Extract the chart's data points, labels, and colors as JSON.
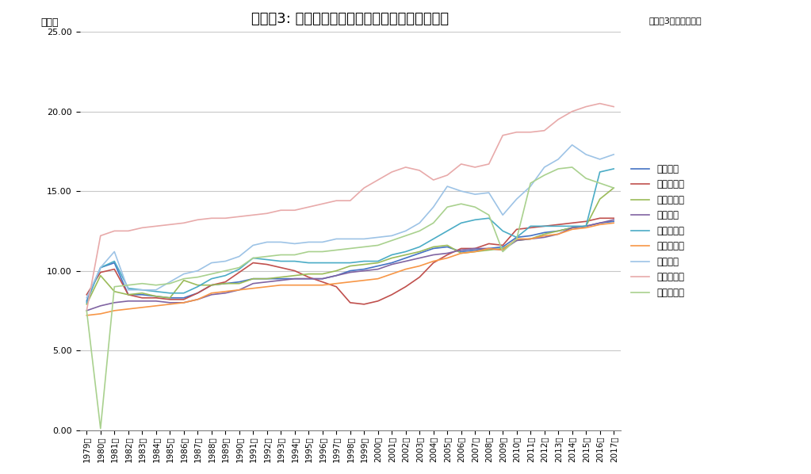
{
  "title": "グラフ3: 平均使用年数の推移（軽自動車を除く）",
  "subtitle": "（各年3月末日時点）",
  "ylabel": "（年）",
  "years": [
    1979,
    1980,
    1981,
    1982,
    1983,
    1984,
    1985,
    1986,
    1987,
    1988,
    1989,
    1990,
    1991,
    1992,
    1993,
    1994,
    1995,
    1996,
    1997,
    1998,
    1999,
    2000,
    2001,
    2002,
    2003,
    2004,
    2005,
    2006,
    2007,
    2008,
    2009,
    2010,
    2011,
    2012,
    2013,
    2014,
    2015,
    2016,
    2017
  ],
  "series": [
    {
      "name": "乗用車計",
      "color": "#4472C4",
      "data": [
        8.1,
        10.2,
        10.5,
        8.5,
        8.5,
        8.4,
        8.3,
        8.3,
        8.6,
        9.1,
        9.2,
        9.3,
        9.5,
        9.5,
        9.5,
        9.5,
        9.5,
        9.5,
        9.7,
        10.0,
        10.1,
        10.3,
        10.5,
        10.8,
        11.1,
        11.4,
        11.5,
        11.2,
        11.3,
        11.4,
        11.5,
        12.1,
        12.2,
        12.4,
        12.5,
        12.7,
        12.8,
        13.0,
        13.1
      ]
    },
    {
      "name": "普通乗用車",
      "color": "#C0504D",
      "data": [
        8.5,
        9.9,
        10.1,
        8.5,
        8.3,
        8.3,
        8.2,
        8.2,
        8.6,
        9.1,
        9.3,
        9.9,
        10.5,
        10.4,
        10.2,
        10.0,
        9.6,
        9.3,
        9.0,
        8.0,
        7.9,
        8.1,
        8.5,
        9.0,
        9.6,
        10.5,
        11.0,
        11.4,
        11.4,
        11.7,
        11.6,
        12.6,
        12.7,
        12.8,
        12.9,
        13.0,
        13.1,
        13.3,
        13.3
      ]
    },
    {
      "name": "小型乗用車",
      "color": "#9BBB59",
      "data": [
        7.9,
        9.7,
        8.7,
        8.5,
        8.6,
        8.4,
        8.3,
        9.4,
        9.1,
        9.1,
        9.2,
        9.2,
        9.5,
        9.5,
        9.6,
        9.7,
        9.8,
        9.8,
        10.0,
        10.3,
        10.4,
        10.5,
        10.8,
        11.0,
        11.2,
        11.5,
        11.6,
        11.1,
        11.2,
        11.3,
        11.4,
        11.9,
        12.0,
        12.3,
        12.5,
        12.7,
        12.8,
        14.5,
        15.2
      ]
    },
    {
      "name": "貨物車計",
      "color": "#8064A2",
      "data": [
        7.5,
        7.8,
        8.0,
        8.1,
        8.1,
        8.1,
        8.0,
        8.0,
        8.2,
        8.5,
        8.6,
        8.8,
        9.2,
        9.3,
        9.4,
        9.5,
        9.5,
        9.5,
        9.7,
        9.9,
        10.0,
        10.1,
        10.4,
        10.6,
        10.8,
        11.0,
        11.1,
        11.3,
        11.4,
        11.4,
        11.3,
        11.9,
        12.0,
        12.1,
        12.3,
        12.7,
        12.8,
        13.0,
        13.2
      ]
    },
    {
      "name": "普通貨物車",
      "color": "#4BACC6",
      "data": [
        8.0,
        10.2,
        10.6,
        8.9,
        8.8,
        8.7,
        8.6,
        8.6,
        9.0,
        9.5,
        9.7,
        10.1,
        10.8,
        10.7,
        10.6,
        10.6,
        10.5,
        10.5,
        10.5,
        10.5,
        10.6,
        10.6,
        11.0,
        11.2,
        11.5,
        12.0,
        12.5,
        13.0,
        13.2,
        13.3,
        12.5,
        12.1,
        12.8,
        12.8,
        12.8,
        12.8,
        12.8,
        16.2,
        16.4
      ]
    },
    {
      "name": "小型貨物車",
      "color": "#F79646",
      "data": [
        7.2,
        7.3,
        7.5,
        7.6,
        7.7,
        7.8,
        7.9,
        8.0,
        8.2,
        8.6,
        8.7,
        8.8,
        8.9,
        9.0,
        9.1,
        9.1,
        9.1,
        9.1,
        9.2,
        9.3,
        9.4,
        9.5,
        9.8,
        10.1,
        10.3,
        10.6,
        10.8,
        11.1,
        11.2,
        11.4,
        11.3,
        12.0,
        12.0,
        12.2,
        12.3,
        12.6,
        12.7,
        12.9,
        13.0
      ]
    },
    {
      "name": "乗合車計",
      "color": "#9DC3E6",
      "data": [
        8.3,
        10.2,
        11.2,
        8.8,
        8.8,
        8.8,
        9.3,
        9.8,
        10.0,
        10.5,
        10.6,
        10.9,
        11.6,
        11.8,
        11.8,
        11.7,
        11.8,
        11.8,
        12.0,
        12.0,
        12.0,
        12.1,
        12.2,
        12.5,
        13.0,
        14.0,
        15.3,
        15.0,
        14.8,
        14.9,
        13.5,
        14.5,
        15.3,
        16.5,
        17.0,
        17.9,
        17.3,
        17.0,
        17.3
      ]
    },
    {
      "name": "普通乗合車",
      "color": "#E8AAAA",
      "data": [
        7.5,
        12.2,
        12.5,
        12.5,
        12.7,
        12.8,
        12.9,
        13.0,
        13.2,
        13.3,
        13.3,
        13.4,
        13.5,
        13.6,
        13.8,
        13.8,
        14.0,
        14.2,
        14.4,
        14.4,
        15.2,
        15.7,
        16.2,
        16.5,
        16.3,
        15.7,
        16.0,
        16.7,
        16.5,
        16.7,
        18.5,
        18.7,
        18.7,
        18.8,
        19.5,
        20.0,
        20.3,
        20.5,
        20.3
      ]
    },
    {
      "name": "小型乗合車",
      "color": "#A9D18E",
      "data": [
        7.5,
        0.1,
        9.0,
        9.1,
        9.2,
        9.1,
        9.2,
        9.5,
        9.6,
        9.8,
        10.0,
        10.2,
        10.8,
        10.9,
        11.0,
        11.0,
        11.2,
        11.2,
        11.3,
        11.4,
        11.5,
        11.6,
        11.9,
        12.2,
        12.5,
        13.0,
        14.0,
        14.2,
        14.0,
        13.5,
        11.2,
        12.0,
        15.5,
        16.0,
        16.4,
        16.5,
        15.8,
        15.5,
        15.2
      ]
    }
  ],
  "ylim": [
    0.0,
    25.0
  ],
  "yticks": [
    0.0,
    5.0,
    10.0,
    15.0,
    20.0,
    25.0
  ],
  "background_color": "#FFFFFF",
  "grid_color": "#C8C8C8"
}
